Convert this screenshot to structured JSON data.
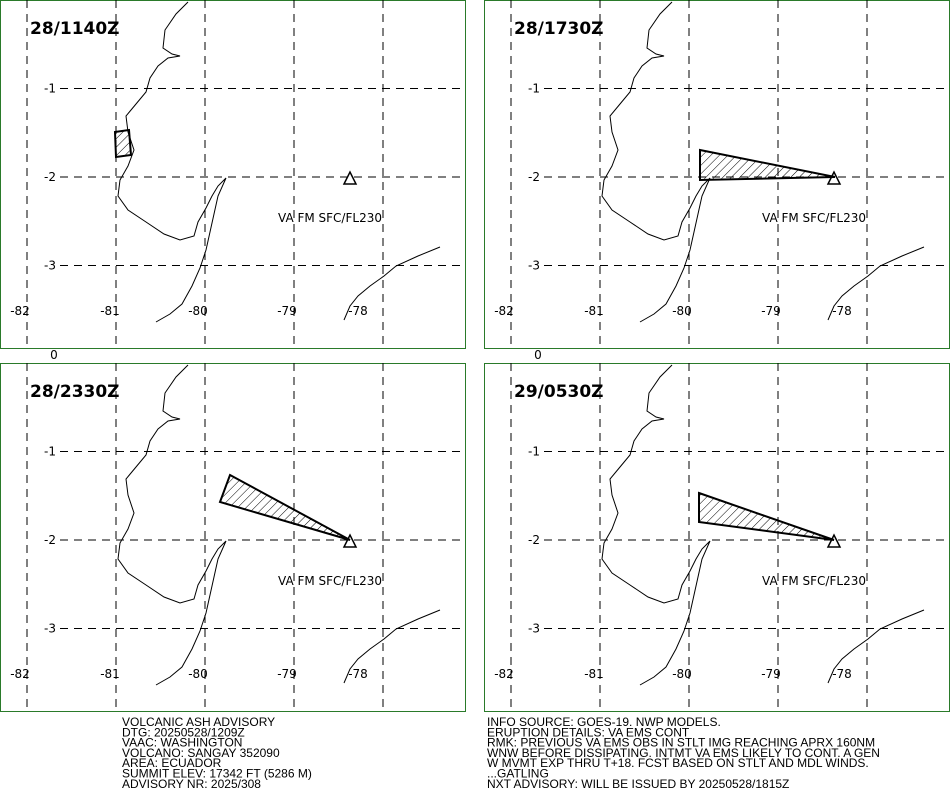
{
  "panels": [
    {
      "time": "28/1140Z",
      "va_label": "VA FM SFC/FL230"
    },
    {
      "time": "28/1730Z",
      "va_label": "VA FM SFC/FL230"
    },
    {
      "time": "28/2330Z",
      "va_label": "VA FM SFC/FL230"
    },
    {
      "time": "29/0530Z",
      "va_label": "VA FM SFC/FL230"
    }
  ],
  "axes": {
    "lat_ticks": [
      0,
      -1,
      -2,
      -3
    ],
    "lon_ticks": [
      -82,
      -81,
      -80,
      -79,
      -78
    ]
  },
  "advisory": {
    "left": [
      "VOLCANIC ASH ADVISORY",
      "DTG: 20250528/1209Z",
      "VAAC: WASHINGTON",
      "VOLCANO: SANGAY 352090",
      "AREA: ECUADOR",
      "SUMMIT ELEV: 17342 FT (5286 M)",
      "ADVISORY NR: 2025/308"
    ],
    "right": [
      "INFO SOURCE: GOES-19. NWP MODELS.",
      "ERUPTION DETAILS: VA EMS CONT",
      "RMK: PREVIOUS VA EMS OBS IN STLT IMG REACHING APRX 160NM",
      "WNW BEFORE DISSIPATING. INTMT VA EMS LIKELY TO CONT. A GEN",
      "W MVMT EXP THRU T+18. FCST BASED ON STLT AND MDL WINDS.",
      "...GATLING",
      "NXT ADVISORY: WILL BE ISSUED BY 20250528/1815Z"
    ]
  }
}
